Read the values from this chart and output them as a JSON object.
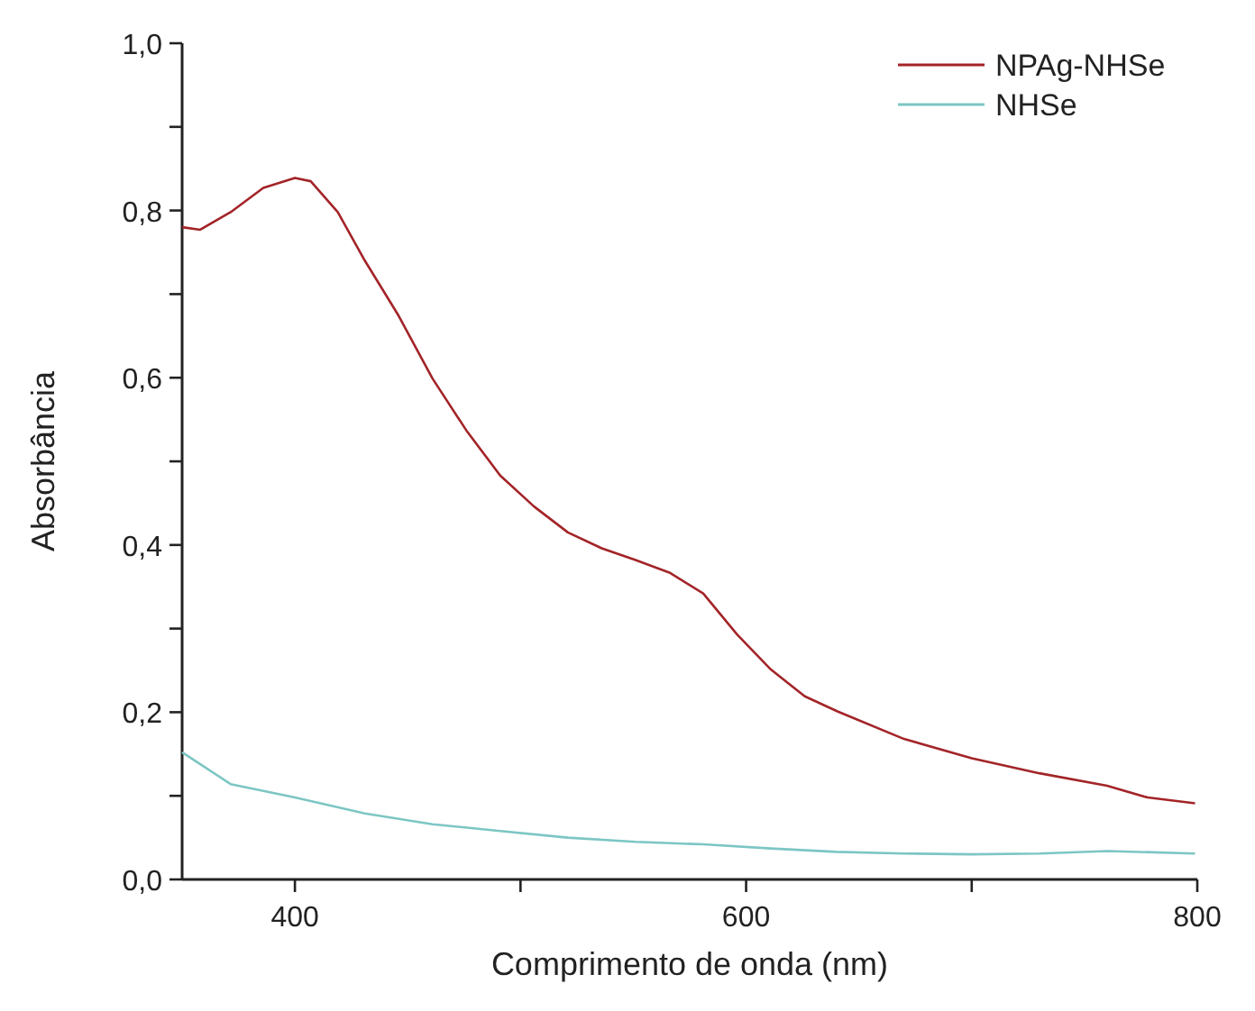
{
  "chart_data": {
    "type": "line",
    "xlabel": "Comprimento de onda (nm)",
    "ylabel": "Absorbância",
    "xlim": [
      350,
      800
    ],
    "ylim": [
      0,
      1
    ],
    "xticks": [
      400,
      {
        "value": 500,
        "label": null
      },
      600,
      {
        "value": 700,
        "label": null
      },
      800
    ],
    "yticks": [
      {
        "value": 0,
        "label": "0,0"
      },
      {
        "value": 0.1,
        "label": null
      },
      {
        "value": 0.2,
        "label": "0,2"
      },
      {
        "value": 0.3,
        "label": null
      },
      {
        "value": 0.4,
        "label": "0,4"
      },
      {
        "value": 0.5,
        "label": null
      },
      {
        "value": 0.6,
        "label": "0,6"
      },
      {
        "value": 0.7,
        "label": null
      },
      {
        "value": 0.8,
        "label": "0,8"
      },
      {
        "value": 0.9,
        "label": null
      },
      {
        "value": 1,
        "label": "1,0"
      }
    ],
    "grid": false,
    "legend": "top right",
    "marker": "none",
    "line_style": "solid",
    "series": [
      {
        "name": "NPAg-NHSe",
        "color": "#a32428",
        "x": [
          350,
          358,
          371.5,
          386,
          400,
          407,
          419,
          431,
          446,
          461,
          476,
          491,
          506,
          521,
          536,
          551,
          566,
          581,
          596,
          611,
          626,
          640.5,
          670,
          700,
          730,
          760,
          778,
          799
        ],
        "values": [
          0.78,
          0.777,
          0.798,
          0.827,
          0.839,
          0.835,
          0.798,
          0.74,
          0.674,
          0.599,
          0.537,
          0.483,
          0.446,
          0.415,
          0.396,
          0.382,
          0.367,
          0.342,
          0.293,
          0.251,
          0.219,
          0.201,
          0.168,
          0.145,
          0.127,
          0.112,
          0.098,
          0.091
        ]
      },
      {
        "name": "NHSe",
        "color": "#7cc6c4",
        "x": [
          350,
          371.5,
          400,
          431,
          461,
          491,
          521,
          551,
          581,
          611,
          640,
          670,
          700,
          730,
          760,
          799
        ],
        "values": [
          0.152,
          0.114,
          0.098,
          0.079,
          0.066,
          0.058,
          0.05,
          0.045,
          0.042,
          0.037,
          0.033,
          0.031,
          0.03,
          0.031,
          0.034,
          0.031
        ]
      }
    ]
  }
}
